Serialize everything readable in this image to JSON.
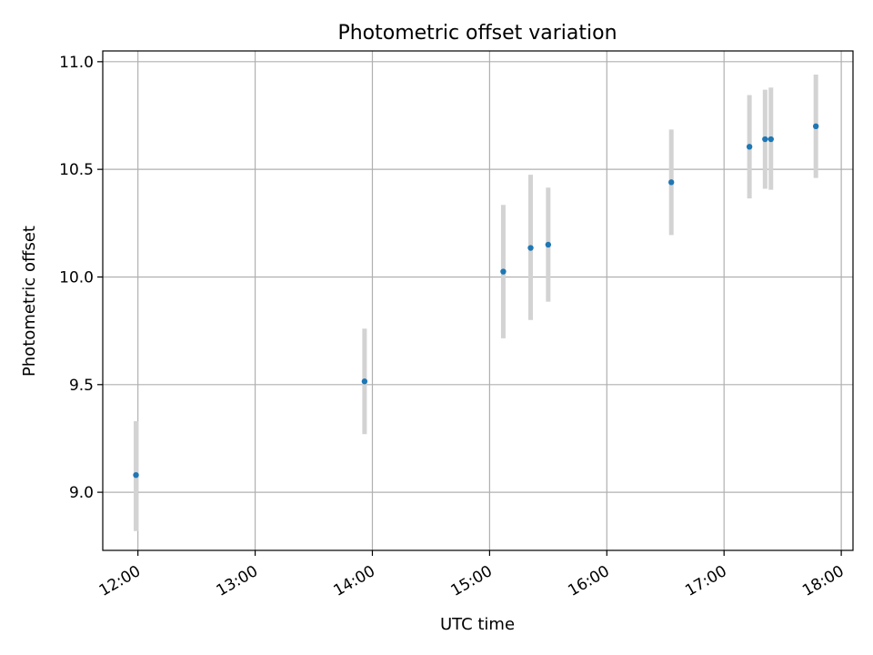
{
  "chart_data": {
    "type": "scatter",
    "title": "Photometric offset variation",
    "xlabel": "UTC time",
    "ylabel": "Photometric offset",
    "xlim": [
      "11:42",
      "18:06"
    ],
    "ylim": [
      8.73,
      11.05
    ],
    "x_ticks": [
      "12:00",
      "13:00",
      "14:00",
      "15:00",
      "16:00",
      "17:00",
      "18:00"
    ],
    "y_ticks": [
      "9.0",
      "9.5",
      "10.0",
      "10.5",
      "11.0"
    ],
    "grid": true,
    "series": [
      {
        "marker_color": "#1f77b4",
        "errorbar_color": "#d3d3d3",
        "points": [
          {
            "time": "11:59",
            "y": 9.08,
            "ylow": 8.82,
            "yhigh": 9.33
          },
          {
            "time": "13:56",
            "y": 9.515,
            "ylow": 9.27,
            "yhigh": 9.76
          },
          {
            "time": "15:07",
            "y": 10.025,
            "ylow": 9.715,
            "yhigh": 10.335
          },
          {
            "time": "15:21",
            "y": 10.135,
            "ylow": 9.8,
            "yhigh": 10.475
          },
          {
            "time": "15:30",
            "y": 10.15,
            "ylow": 9.885,
            "yhigh": 10.415
          },
          {
            "time": "16:33",
            "y": 10.44,
            "ylow": 10.195,
            "yhigh": 10.685
          },
          {
            "time": "17:13",
            "y": 10.605,
            "ylow": 10.365,
            "yhigh": 10.845
          },
          {
            "time": "17:21",
            "y": 10.64,
            "ylow": 10.41,
            "yhigh": 10.87
          },
          {
            "time": "17:24",
            "y": 10.64,
            "ylow": 10.405,
            "yhigh": 10.88
          },
          {
            "time": "17:47",
            "y": 10.7,
            "ylow": 10.46,
            "yhigh": 10.94
          }
        ]
      }
    ]
  }
}
